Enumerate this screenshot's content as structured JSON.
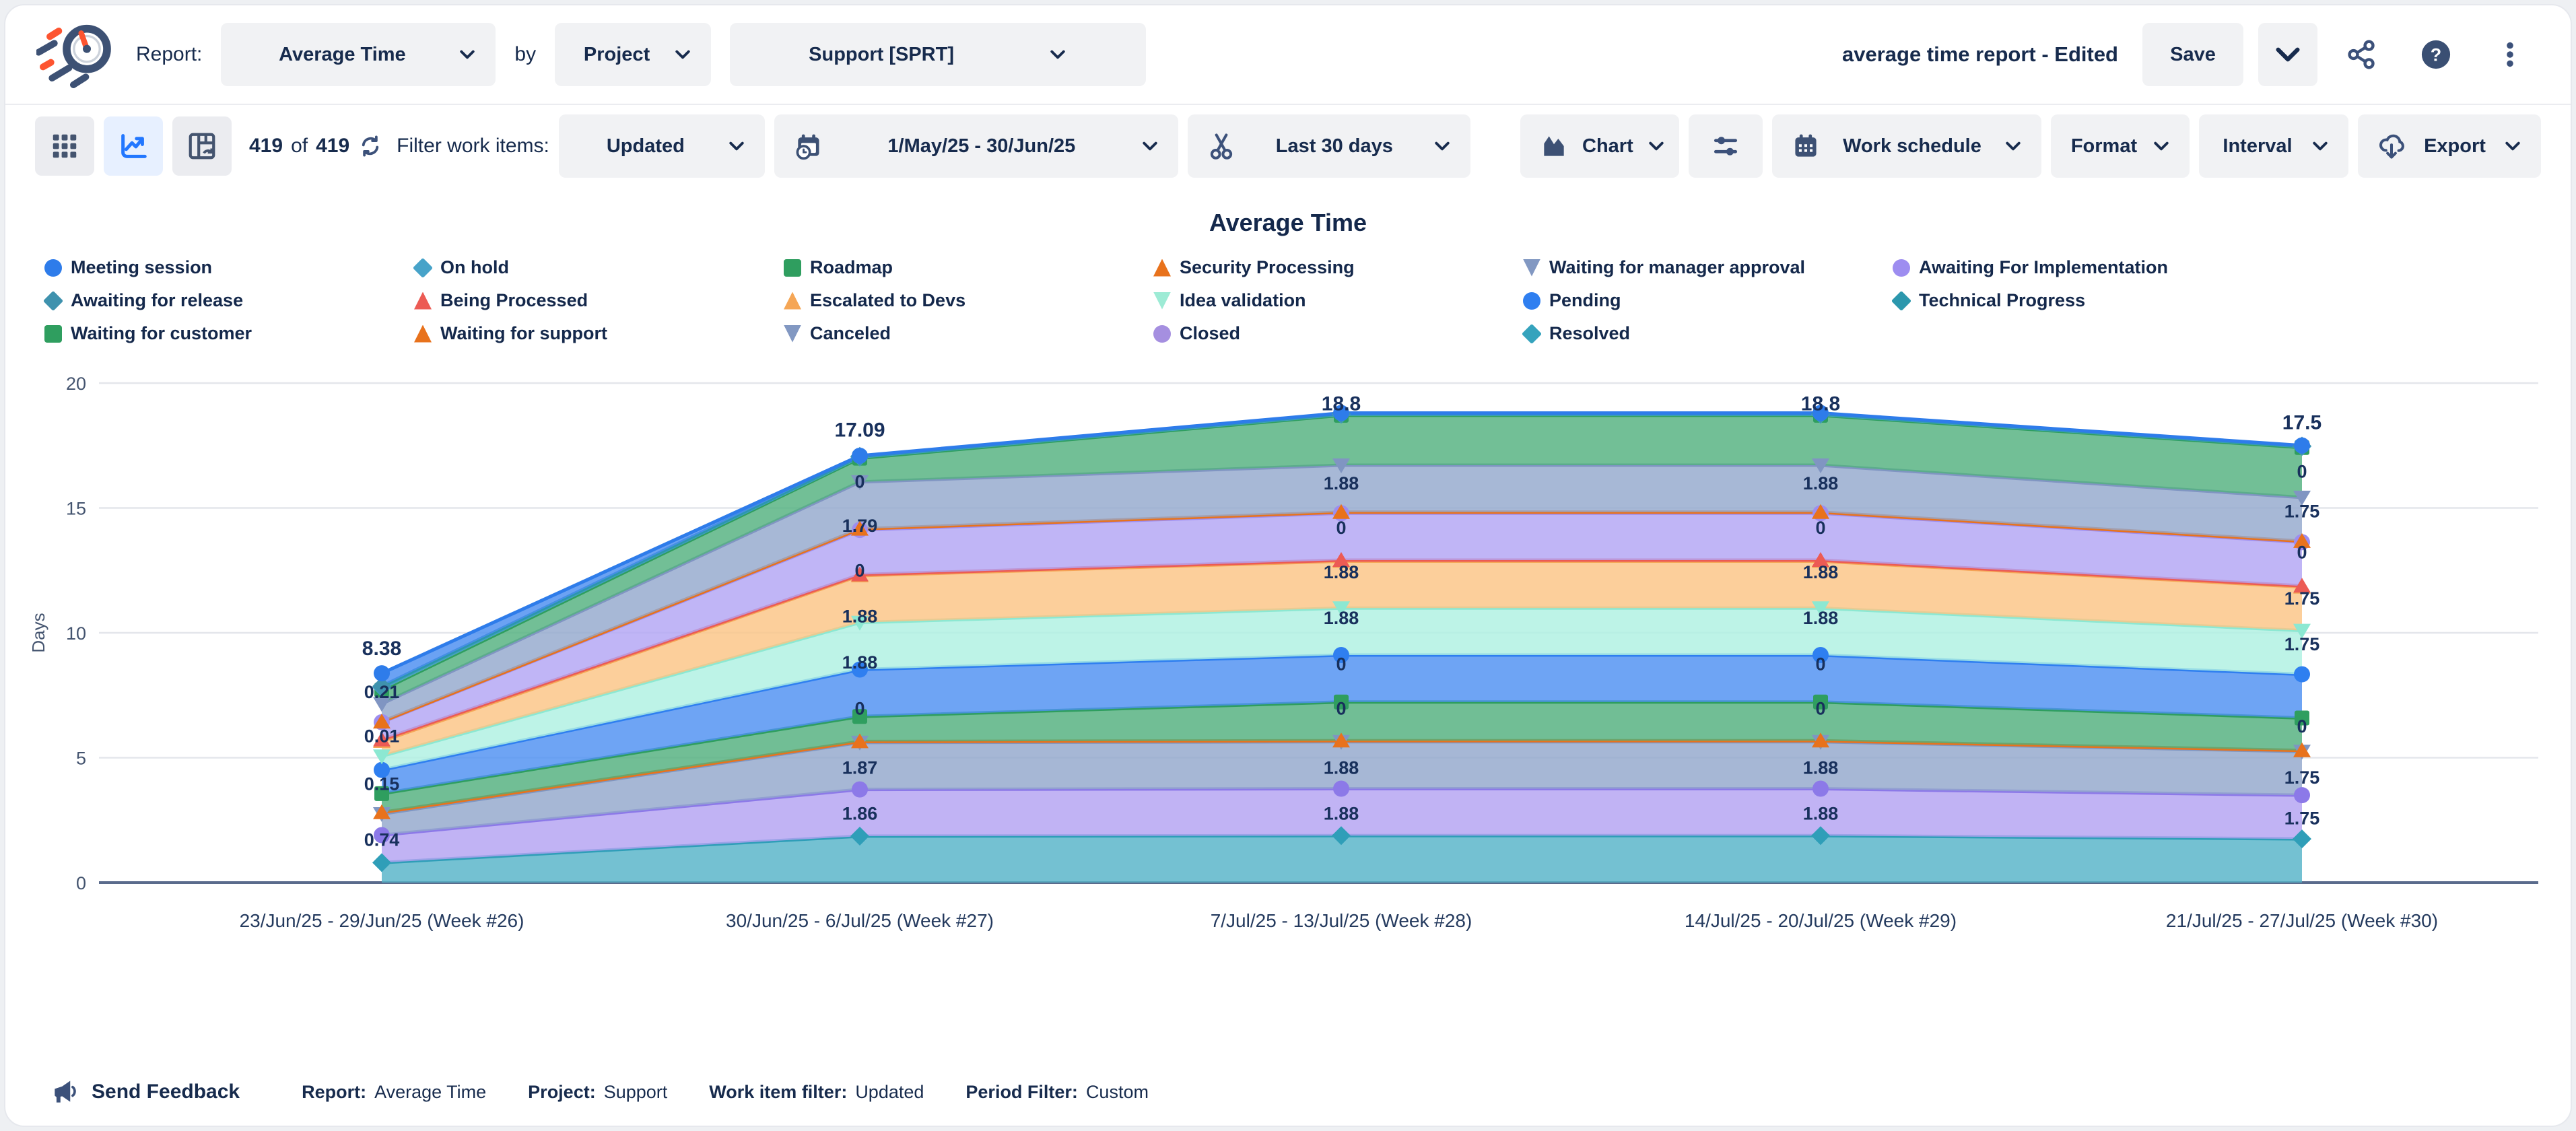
{
  "header": {
    "report_label": "Report:",
    "report_type": "Average Time",
    "by_label": "by",
    "group_by": "Project",
    "project": "Support [SPRT]",
    "doc_title": "average time report - Edited",
    "save_label": "Save"
  },
  "toolbar": {
    "count_current": "419",
    "count_of": "of",
    "count_total": "419",
    "filter_label": "Filter work items:",
    "filter_value": "Updated",
    "date_range": "1/May/25 - 30/Jun/25",
    "period_preset": "Last 30 days",
    "chart_label": "Chart",
    "work_schedule_label": "Work schedule",
    "format_label": "Format",
    "interval_label": "Interval",
    "export_label": "Export"
  },
  "footer": {
    "feedback_label": "Send Feedback",
    "items": [
      {
        "label": "Report:",
        "value": "Average Time"
      },
      {
        "label": "Project:",
        "value": "Support"
      },
      {
        "label": "Work item filter:",
        "value": "Updated"
      },
      {
        "label": "Period Filter:",
        "value": "Custom"
      }
    ]
  },
  "chart_data": {
    "type": "area",
    "stacked": true,
    "title": "Average Time",
    "xlabel": "",
    "ylabel": "Days",
    "ylim": [
      0,
      20
    ],
    "yticks": [
      0,
      5,
      10,
      15,
      20
    ],
    "grid": true,
    "legend_position": "top",
    "categories": [
      "23/Jun/25 - 29/Jun/25 (Week #26)",
      "30/Jun/25 - 6/Jul/25 (Week #27)",
      "7/Jul/25 - 13/Jul/25 (Week #28)",
      "14/Jul/25 - 20/Jul/25 (Week #29)",
      "21/Jul/25 - 27/Jul/25 (Week #30)"
    ],
    "totals": [
      8.38,
      17.09,
      18.8,
      18.8,
      17.5
    ],
    "legend": [
      {
        "label": "Meeting session",
        "color": "#2e7cea",
        "shape": "circle"
      },
      {
        "label": "On hold",
        "color": "#47a3c9",
        "shape": "diamond"
      },
      {
        "label": "Roadmap",
        "color": "#2f9e5f",
        "shape": "square"
      },
      {
        "label": "Security Processing",
        "color": "#e8721c",
        "shape": "tri-up"
      },
      {
        "label": "Waiting for manager approval",
        "color": "#8298c2",
        "shape": "tri-down"
      },
      {
        "label": "Awaiting For Implementation",
        "color": "#9d8df0",
        "shape": "circle"
      },
      {
        "label": "Awaiting for release",
        "color": "#3f92ae",
        "shape": "diamond"
      },
      {
        "label": "Being Processed",
        "color": "#ec5b54",
        "shape": "tri-up"
      },
      {
        "label": "Escalated to Devs",
        "color": "#f5a656",
        "shape": "tri-up"
      },
      {
        "label": "Idea validation",
        "color": "#9debd5",
        "shape": "tri-down"
      },
      {
        "label": "Pending",
        "color": "#2f7ff0",
        "shape": "circle"
      },
      {
        "label": "Technical Progress",
        "color": "#2b97ad",
        "shape": "diamond"
      },
      {
        "label": "Waiting for customer",
        "color": "#2f9e5f",
        "shape": "square"
      },
      {
        "label": "Waiting for support",
        "color": "#e8721c",
        "shape": "tri-up"
      },
      {
        "label": "Canceled",
        "color": "#8298c2",
        "shape": "tri-down"
      },
      {
        "label": "Closed",
        "color": "#a58fe0",
        "shape": "circle"
      },
      {
        "label": "Resolved",
        "color": "#35a3bd",
        "shape": "diamond"
      }
    ],
    "series": [
      {
        "name": "Resolved",
        "color": "#2f9eb8",
        "fill": "#56b3c8",
        "shape": "diamond",
        "marker": true,
        "values": [
          0.8,
          1.86,
          1.88,
          1.88,
          1.75
        ]
      },
      {
        "name": "Closed",
        "color": "#8c79e8",
        "fill": "#b3a2f2",
        "shape": "circle",
        "marker": true,
        "values": [
          1.1,
          1.87,
          1.88,
          1.88,
          1.75
        ]
      },
      {
        "name": "Canceled",
        "color": "#7f96c2",
        "fill": "#93a7cc",
        "shape": "tri-down",
        "marker": true,
        "values": [
          0.85,
          1.88,
          1.88,
          1.88,
          1.75
        ]
      },
      {
        "name": "Waiting for support",
        "color": "#e8721c",
        "fill": "#ef8f4a",
        "shape": "tri-up",
        "marker": true,
        "values": [
          0.06,
          0.04,
          0.04,
          0.04,
          0.04
        ]
      },
      {
        "name": "Waiting for customer",
        "color": "#2f9e5f",
        "fill": "#52b07e",
        "shape": "square",
        "marker": true,
        "values": [
          0.75,
          1.0,
          1.55,
          1.55,
          1.3
        ]
      },
      {
        "name": "Pending",
        "color": "#2f7ff0",
        "fill": "#4e90f2",
        "shape": "circle",
        "marker": true,
        "values": [
          0.95,
          1.88,
          1.88,
          1.88,
          1.75
        ]
      },
      {
        "name": "Idea validation",
        "color": "#8ce8d2",
        "fill": "#aff0e2",
        "shape": "tri-down",
        "marker": true,
        "values": [
          0.55,
          1.88,
          1.88,
          1.88,
          1.75
        ]
      },
      {
        "name": "Escalated to Devs",
        "color": "#f5a656",
        "fill": "#fbc585",
        "shape": "tri-up",
        "marker": true,
        "values": [
          0.6,
          1.88,
          1.88,
          1.88,
          1.75
        ]
      },
      {
        "name": "Being Processed",
        "color": "#ec5b54",
        "fill": "#f07f78",
        "shape": "tri-up",
        "marker": true,
        "values": [
          0.06,
          0.04,
          0.04,
          0.04,
          0.04
        ]
      },
      {
        "name": "Awaiting For Implementation",
        "color": "#9d8df0",
        "fill": "#b2a5f4",
        "shape": "circle",
        "marker": true,
        "values": [
          0.7,
          1.79,
          1.88,
          1.88,
          1.75
        ]
      },
      {
        "name": "Security Processing",
        "color": "#e8721c",
        "fill": "#ef8f4a",
        "shape": "tri-up",
        "marker": true,
        "values": [
          0.02,
          0.04,
          0.04,
          0.04,
          0.04
        ]
      },
      {
        "name": "Waiting for manager approval",
        "color": "#8095c2",
        "fill": "#94a8cd",
        "shape": "tri-down",
        "marker": true,
        "values": [
          0.72,
          1.88,
          1.88,
          1.88,
          1.75
        ]
      },
      {
        "name": "Roadmap",
        "color": "#2f9e5f",
        "fill": "#53b17f",
        "shape": "square",
        "marker": true,
        "values": [
          0.55,
          0.95,
          2.0,
          2.0,
          2.0
        ]
      },
      {
        "name": "On hold",
        "color": "#3f9ec4",
        "fill": "#65b3d2",
        "shape": "diamond",
        "marker": true,
        "values": [
          0.1,
          0.05,
          0.04,
          0.04,
          0.04
        ]
      },
      {
        "name": "Awaiting for release",
        "color": "#3f92ae",
        "fill": "#60a8c0",
        "shape": "diamond",
        "marker": true,
        "values": [
          0.05,
          0.03,
          0.03,
          0.03,
          0.02
        ]
      },
      {
        "name": "Technical Progress",
        "color": "#2b97ad",
        "fill": "#2b97ad",
        "shape": "diamond",
        "marker": false,
        "values": [
          0,
          0,
          0,
          0,
          0
        ]
      },
      {
        "name": "Meeting session",
        "color": "#2e7cea",
        "fill": "#4b8ef0",
        "shape": "circle",
        "marker": true,
        "values": [
          0.52,
          0.02,
          0.02,
          0.02,
          0.02
        ]
      }
    ],
    "point_labels": [
      {
        "w": 0,
        "v": 9.35,
        "t": "8.38",
        "b": true
      },
      {
        "w": 0,
        "v": 7.63,
        "t": "0.21",
        "b": false
      },
      {
        "w": 0,
        "v": 5.86,
        "t": "0.01",
        "b": false
      },
      {
        "w": 0,
        "v": 3.95,
        "t": "0.15",
        "b": false
      },
      {
        "w": 0,
        "v": 1.71,
        "t": "0.74",
        "b": false
      },
      {
        "w": 1,
        "v": 18.1,
        "t": "17.09",
        "b": true
      },
      {
        "w": 1,
        "v": 16.05,
        "t": "0",
        "b": false
      },
      {
        "w": 1,
        "v": 14.28,
        "t": "1.79",
        "b": false
      },
      {
        "w": 1,
        "v": 12.5,
        "t": "0",
        "b": false
      },
      {
        "w": 1,
        "v": 10.66,
        "t": "1.88",
        "b": false
      },
      {
        "w": 1,
        "v": 8.82,
        "t": "1.88",
        "b": false
      },
      {
        "w": 1,
        "v": 6.97,
        "t": "0",
        "b": false
      },
      {
        "w": 1,
        "v": 4.6,
        "t": "1.87",
        "b": false
      },
      {
        "w": 1,
        "v": 2.76,
        "t": "1.86",
        "b": false
      },
      {
        "w": 2,
        "v": 19.15,
        "t": "18.8",
        "b": true
      },
      {
        "w": 2,
        "v": 15.99,
        "t": "1.88",
        "b": false
      },
      {
        "w": 2,
        "v": 14.21,
        "t": "0",
        "b": false
      },
      {
        "w": 2,
        "v": 12.43,
        "t": "1.88",
        "b": false
      },
      {
        "w": 2,
        "v": 10.59,
        "t": "1.88",
        "b": false
      },
      {
        "w": 2,
        "v": 8.75,
        "t": "0",
        "b": false
      },
      {
        "w": 2,
        "v": 6.97,
        "t": "0",
        "b": false
      },
      {
        "w": 2,
        "v": 4.6,
        "t": "1.88",
        "b": false
      },
      {
        "w": 2,
        "v": 2.76,
        "t": "1.88",
        "b": false
      },
      {
        "w": 3,
        "v": 19.15,
        "t": "18.8",
        "b": true
      },
      {
        "w": 3,
        "v": 15.99,
        "t": "1.88",
        "b": false
      },
      {
        "w": 3,
        "v": 14.21,
        "t": "0",
        "b": false
      },
      {
        "w": 3,
        "v": 12.43,
        "t": "1.88",
        "b": false
      },
      {
        "w": 3,
        "v": 10.59,
        "t": "1.88",
        "b": false
      },
      {
        "w": 3,
        "v": 8.75,
        "t": "0",
        "b": false
      },
      {
        "w": 3,
        "v": 6.97,
        "t": "0",
        "b": false
      },
      {
        "w": 3,
        "v": 4.6,
        "t": "1.88",
        "b": false
      },
      {
        "w": 3,
        "v": 2.76,
        "t": "1.88",
        "b": false
      },
      {
        "w": 4,
        "v": 18.4,
        "t": "17.5",
        "b": true
      },
      {
        "w": 4,
        "v": 16.45,
        "t": "0",
        "b": false
      },
      {
        "w": 4,
        "v": 14.87,
        "t": "1.75",
        "b": false
      },
      {
        "w": 4,
        "v": 13.22,
        "t": "0",
        "b": false
      },
      {
        "w": 4,
        "v": 11.38,
        "t": "1.75",
        "b": false
      },
      {
        "w": 4,
        "v": 9.54,
        "t": "1.75",
        "b": false
      },
      {
        "w": 4,
        "v": 6.25,
        "t": "0",
        "b": false
      },
      {
        "w": 4,
        "v": 4.21,
        "t": "1.75",
        "b": false
      },
      {
        "w": 4,
        "v": 2.57,
        "t": "1.75",
        "b": false
      }
    ]
  }
}
